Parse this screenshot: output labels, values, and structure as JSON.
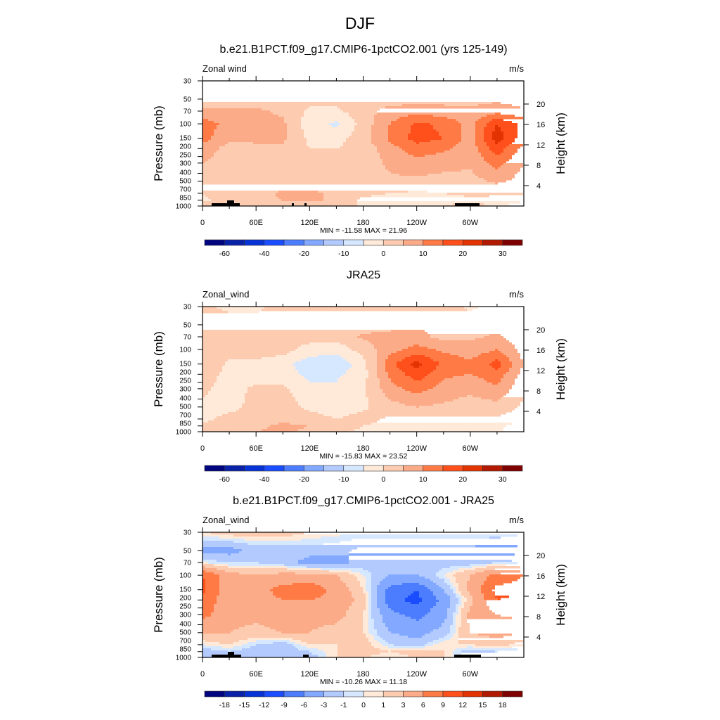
{
  "figure_title": "DJF",
  "colors": [
    "#00057f",
    "#0a22a8",
    "#0633d6",
    "#1a4dff",
    "#4d7dff",
    "#82a8ff",
    "#b3caff",
    "#d6e8ff",
    "#ffe9d8",
    "#fccbb0",
    "#fcab88",
    "#ff7a45",
    "#ff4f1a",
    "#e23300",
    "#b21a00",
    "#7f0000"
  ],
  "chart_data": [
    {
      "type": "heatmap",
      "title": "b.e21.B1PCT.f09_g17.CMIP6-1pctCO2.001 (yrs 125-149)",
      "left_label": "Zonal wind",
      "right_label": "m/s",
      "ylabel": "Pressure (mb)",
      "ylabel_right": "Height (km)",
      "stats": "MIN = -11.58  MAX =  21.96",
      "levels": [
        -60,
        -50,
        -40,
        -30,
        -20,
        -15,
        -10,
        -5,
        0,
        5,
        10,
        15,
        20,
        25,
        30
      ],
      "level_labels": [
        "-60",
        "",
        "-40",
        "",
        "-20",
        "",
        "-10",
        "",
        "0",
        "",
        "10",
        "",
        "20",
        "",
        "30"
      ],
      "lon": [
        0,
        30,
        60,
        90,
        120,
        150,
        180,
        210,
        240,
        270,
        300,
        330,
        360
      ],
      "pressure": [
        30,
        50,
        70,
        100,
        150,
        200,
        300,
        500,
        700,
        850,
        1000
      ],
      "values": [
        [
          2,
          2,
          2,
          2,
          2,
          2,
          2,
          2,
          2,
          2,
          2,
          2,
          2
        ],
        [
          2,
          2,
          2,
          2,
          2,
          2,
          2,
          2,
          3,
          3,
          3,
          4,
          2
        ],
        [
          6,
          6,
          6,
          4,
          -1,
          -1,
          3,
          7,
          8,
          7,
          6,
          8,
          6
        ],
        [
          13,
          8,
          7,
          6,
          -3,
          -6,
          2,
          10,
          16,
          14,
          8,
          20,
          13
        ],
        [
          12,
          6,
          6,
          6,
          -1,
          -2,
          3,
          11,
          17,
          15,
          8,
          23,
          12
        ],
        [
          8,
          3,
          4,
          4,
          0,
          0,
          2,
          8,
          13,
          11,
          7,
          18,
          8
        ],
        [
          5,
          2,
          2,
          2,
          2,
          1,
          2,
          6,
          8,
          7,
          6,
          12,
          5
        ],
        [
          3,
          2,
          2,
          2,
          2,
          2,
          2,
          4,
          4,
          3,
          3,
          6,
          3
        ],
        [
          0,
          2,
          3,
          6,
          6,
          4,
          1,
          0,
          -1,
          0,
          1,
          1,
          0
        ],
        [
          -1,
          2,
          3,
          5,
          6,
          4,
          -1,
          -2,
          -2,
          -2,
          -1,
          -2,
          -1
        ],
        [
          3,
          2,
          2,
          3,
          3,
          3,
          -1,
          -2,
          -2,
          0,
          2,
          -1,
          3
        ]
      ],
      "topography": true
    },
    {
      "type": "heatmap",
      "title": "JRA25",
      "left_label": "Zonal_wind",
      "right_label": "m/s",
      "ylabel": "Pressure (mb)",
      "ylabel_right": "Height (km)",
      "stats": "MIN = -15.83  MAX =  23.52",
      "levels": [
        -60,
        -50,
        -40,
        -30,
        -20,
        -15,
        -10,
        -5,
        0,
        5,
        10,
        15,
        20,
        25,
        30
      ],
      "level_labels": [
        "-60",
        "",
        "-40",
        "",
        "-20",
        "",
        "-10",
        "",
        "0",
        "",
        "10",
        "",
        "20",
        "",
        "30"
      ],
      "lon": [
        0,
        30,
        60,
        90,
        120,
        150,
        180,
        210,
        240,
        270,
        300,
        330,
        360
      ],
      "pressure": [
        30,
        50,
        70,
        100,
        150,
        200,
        300,
        500,
        700,
        850,
        1000
      ],
      "values": [
        [
          1,
          -1,
          -1,
          2,
          2,
          2,
          2,
          2,
          2,
          2,
          -1,
          2,
          1
        ],
        [
          2,
          2,
          2,
          2,
          2,
          2,
          2,
          3,
          4,
          4,
          3,
          3,
          2
        ],
        [
          2,
          2,
          2,
          2,
          2,
          2,
          6,
          7,
          7,
          3,
          4,
          6,
          2
        ],
        [
          3,
          2,
          2,
          2,
          -2,
          -3,
          2,
          8,
          12,
          9,
          7,
          10,
          3
        ],
        [
          5,
          -1,
          -1,
          -3,
          -8,
          -9,
          -2,
          13,
          22,
          14,
          11,
          17,
          5
        ],
        [
          3,
          -2,
          -2,
          -2,
          -7,
          -6,
          -2,
          11,
          18,
          11,
          10,
          13,
          3
        ],
        [
          1,
          -2,
          1,
          1,
          -3,
          -4,
          -1,
          8,
          12,
          8,
          6,
          9,
          1
        ],
        [
          -1,
          -2,
          2,
          2,
          -1,
          -3,
          -1,
          3,
          5,
          4,
          3,
          3,
          -1
        ],
        [
          -2,
          2,
          3,
          4,
          2,
          0,
          2,
          -1,
          -1,
          -1,
          -1,
          -1,
          -2
        ],
        [
          2,
          2,
          4,
          6,
          5,
          2,
          0,
          -2,
          -2,
          -2,
          -2,
          -1,
          2
        ],
        [
          5,
          2,
          5,
          6,
          4,
          1,
          -1,
          -3,
          -2,
          -2,
          -2,
          -1,
          5
        ]
      ],
      "topography": false
    },
    {
      "type": "heatmap",
      "title": "b.e21.B1PCT.f09_g17.CMIP6-1pctCO2.001 - JRA25",
      "left_label": "Zonal_wind",
      "right_label": "m/s",
      "ylabel": "Pressure (mb)",
      "ylabel_right": "Height (km)",
      "stats": "MIN = -10.26  MAX =  11.18",
      "levels": [
        -18,
        -15,
        -12,
        -9,
        -6,
        -3,
        -1,
        0,
        1,
        3,
        6,
        9,
        12,
        15,
        18
      ],
      "level_labels": [
        "-18",
        "-15",
        "-12",
        "-9",
        "-6",
        "-3",
        "-1",
        "0",
        "1",
        "3",
        "6",
        "9",
        "12",
        "15",
        "18"
      ],
      "lon": [
        0,
        30,
        60,
        90,
        120,
        150,
        180,
        210,
        240,
        270,
        300,
        330,
        360
      ],
      "pressure": [
        30,
        50,
        70,
        100,
        150,
        200,
        300,
        500,
        700,
        850,
        1000
      ],
      "values": [
        [
          1,
          2,
          2,
          2,
          1,
          0.5,
          0.5,
          0.5,
          0.5,
          0.5,
          0.5,
          0.5,
          1
        ],
        [
          -4,
          -4,
          -2,
          -2,
          -2,
          -2,
          -4,
          -4,
          -4,
          -4,
          -4,
          -5,
          -4
        ],
        [
          0,
          -1,
          -1,
          -2,
          -4,
          -4,
          -2,
          -2,
          -1,
          -2,
          -2,
          -1,
          0
        ],
        [
          9,
          4,
          3,
          4,
          4,
          3,
          0,
          -3,
          -3,
          0,
          3,
          7,
          9
        ],
        [
          10,
          4,
          5,
          7,
          8,
          5,
          1,
          -7,
          -9,
          -3,
          4,
          10,
          10
        ],
        [
          8,
          4,
          5,
          6,
          6,
          5,
          2,
          -8,
          -10,
          -5,
          2,
          9,
          8
        ],
        [
          7,
          4,
          4,
          5,
          4,
          4,
          1,
          -5,
          -7,
          -4,
          4,
          6,
          7
        ],
        [
          3,
          3,
          2,
          3,
          3,
          2,
          1,
          -3,
          -4,
          -2,
          3,
          4,
          3
        ],
        [
          0,
          1,
          -1,
          -2,
          1,
          1,
          2,
          -1,
          -2,
          1,
          1,
          2,
          0
        ],
        [
          -2,
          -1,
          -2,
          -2,
          -1,
          1,
          2,
          1,
          2,
          1,
          -2,
          -1,
          -2
        ],
        [
          -3,
          -2,
          -1,
          -1,
          -2,
          1,
          1,
          0,
          1,
          1,
          -2,
          -1,
          -3
        ]
      ],
      "topography": true
    }
  ],
  "axes": {
    "pressure_ticks": [
      "30",
      "50",
      "70",
      "100",
      "150",
      "200",
      "250",
      "300",
      "400",
      "500",
      "700",
      "850",
      "1000"
    ],
    "height_ticks": [
      "20",
      "16",
      "12",
      "8",
      "4"
    ],
    "lon_ticks": [
      "0",
      "60E",
      "120E",
      "180",
      "120W",
      "60W"
    ]
  }
}
